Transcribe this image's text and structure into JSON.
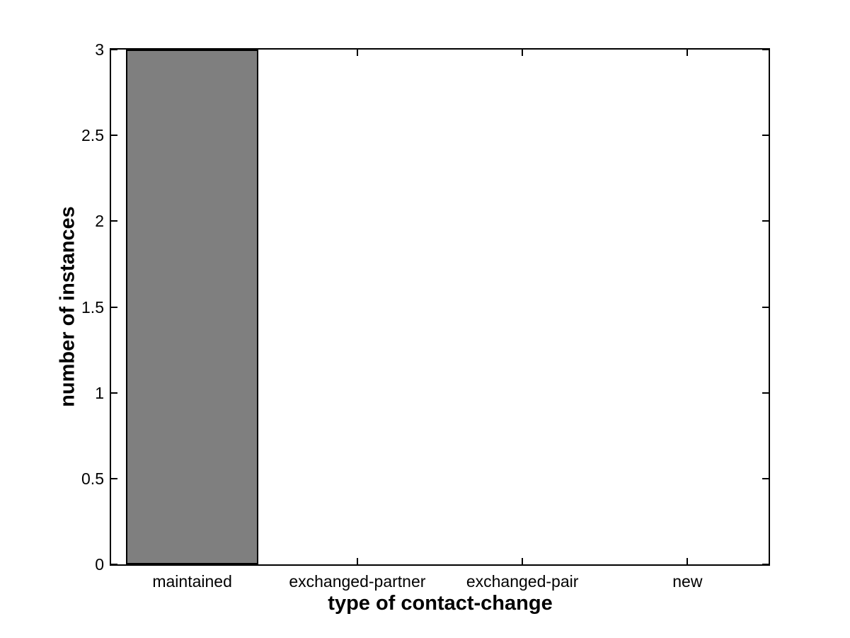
{
  "figure": {
    "background_color": "#FFFFFF",
    "text_color": "#000000"
  },
  "chart_data": {
    "type": "bar",
    "title": "",
    "xlabel": "type of contact-change",
    "ylabel": "number of instances",
    "categories": [
      "maintained",
      "exchanged-partner",
      "exchanged-pair",
      "new"
    ],
    "values": [
      3,
      0,
      0,
      0
    ],
    "ylim": [
      0,
      3
    ],
    "ytick_labels": [
      "0",
      "0.5",
      "1",
      "1.5",
      "2",
      "2.5",
      "3"
    ],
    "ytick_values": [
      0,
      0.5,
      1,
      1.5,
      2,
      2.5,
      3
    ],
    "grid": false,
    "legend": "none",
    "box": true,
    "ticks_inward_all_sides": true,
    "bar_width_fraction": 0.8,
    "bar_fill_color": "#7F7F7F",
    "bar_edge_color": "#000000",
    "axis_color": "#000000"
  }
}
